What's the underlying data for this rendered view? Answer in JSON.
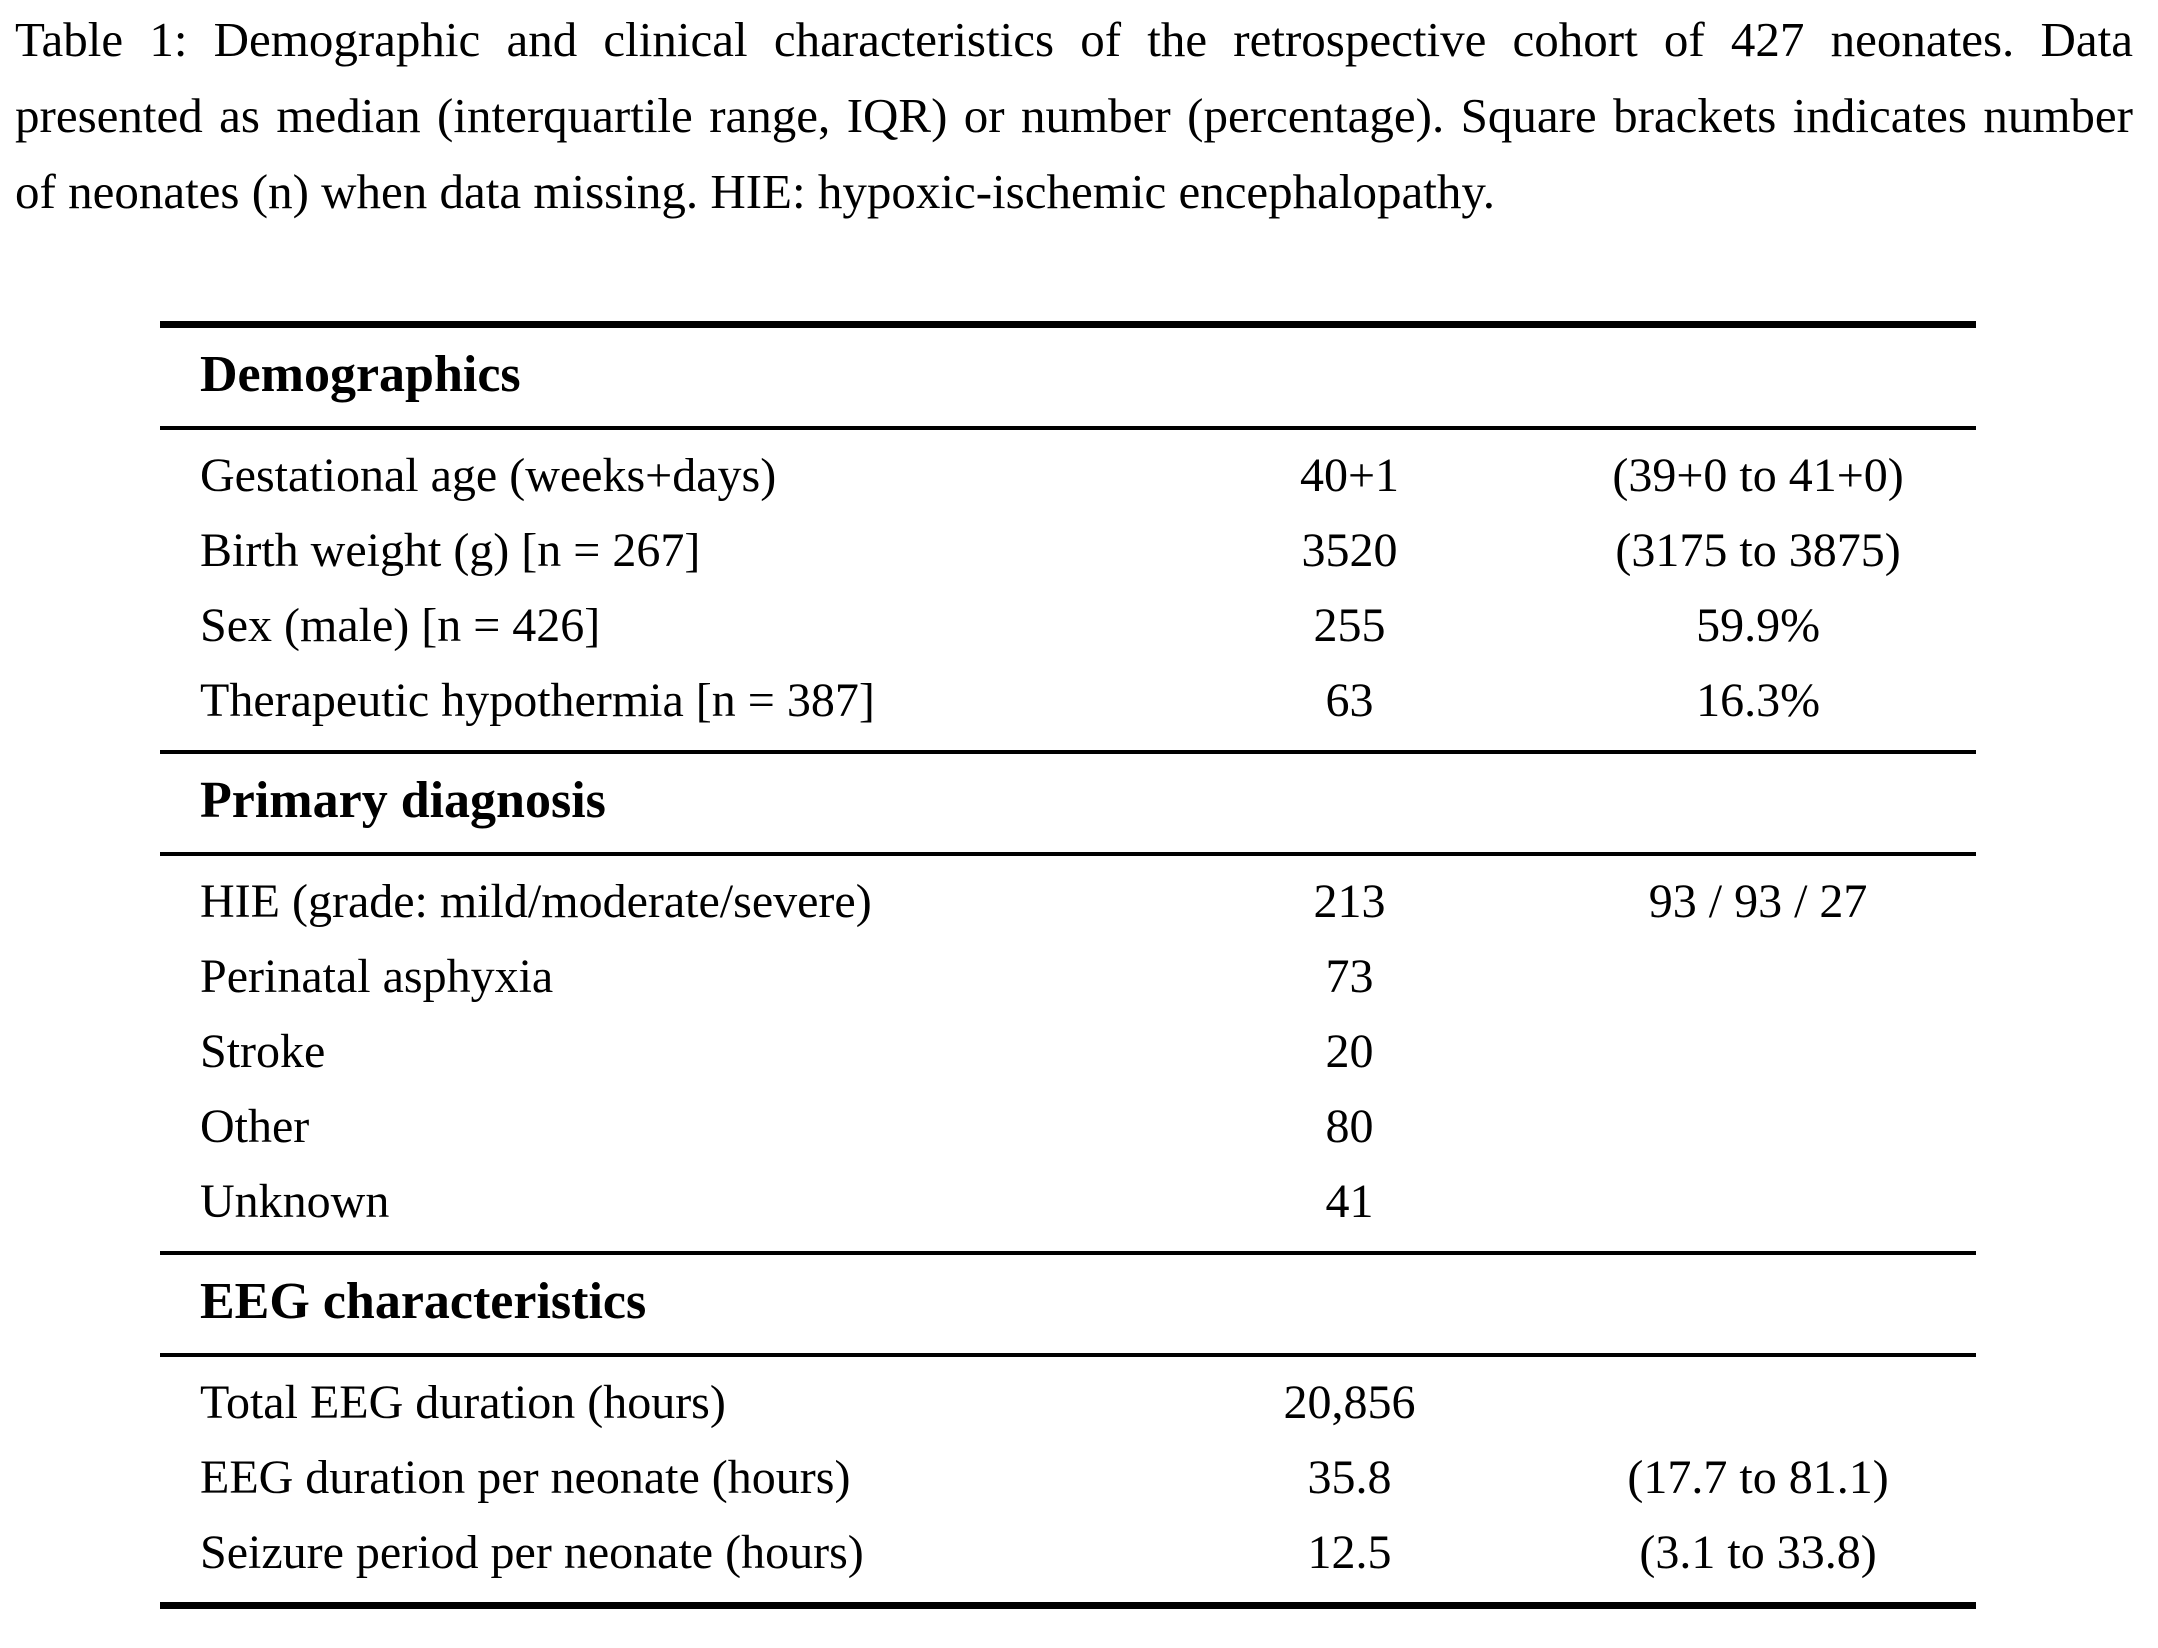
{
  "caption": "Table 1: Demographic and clinical characteristics of the retrospective cohort of 427 neonates. Data presented as median (interquartile range, IQR) or number (percentage). Square brackets indicates number of neonates (n) when data missing. HIE: hypoxic-ischemic encephalopathy.",
  "table": {
    "sections": [
      {
        "header": "Demographics",
        "rows": [
          {
            "label": "Gestational age (weeks+days)",
            "value": "40+1",
            "range": "(39+0 to 41+0)"
          },
          {
            "label": "Birth weight (g) [n = 267]",
            "value": "3520",
            "range": "(3175 to 3875)"
          },
          {
            "label": "Sex (male) [n = 426]",
            "value": "255",
            "range": "59.9%"
          },
          {
            "label": "Therapeutic hypothermia [n = 387]",
            "value": "63",
            "range": "16.3%"
          }
        ]
      },
      {
        "header": "Primary diagnosis",
        "rows": [
          {
            "label": "HIE (grade: mild/moderate/severe)",
            "value": "213",
            "range": "93 / 93 / 27"
          },
          {
            "label": "Perinatal asphyxia",
            "value": "73",
            "range": ""
          },
          {
            "label": "Stroke",
            "value": "20",
            "range": ""
          },
          {
            "label": "Other",
            "value": "80",
            "range": ""
          },
          {
            "label": "Unknown",
            "value": "41",
            "range": ""
          }
        ]
      },
      {
        "header": "EEG characteristics",
        "rows": [
          {
            "label": "Total EEG duration (hours)",
            "value": "20,856",
            "range": ""
          },
          {
            "label": "EEG duration per neonate (hours)",
            "value": "35.8",
            "range": "(17.7 to 81.1)"
          },
          {
            "label": "Seizure period per neonate (hours)",
            "value": "12.5",
            "range": "(3.1 to 33.8)"
          }
        ]
      }
    ]
  },
  "colors": {
    "text": "#000000",
    "background": "#ffffff",
    "rule": "#000000"
  }
}
